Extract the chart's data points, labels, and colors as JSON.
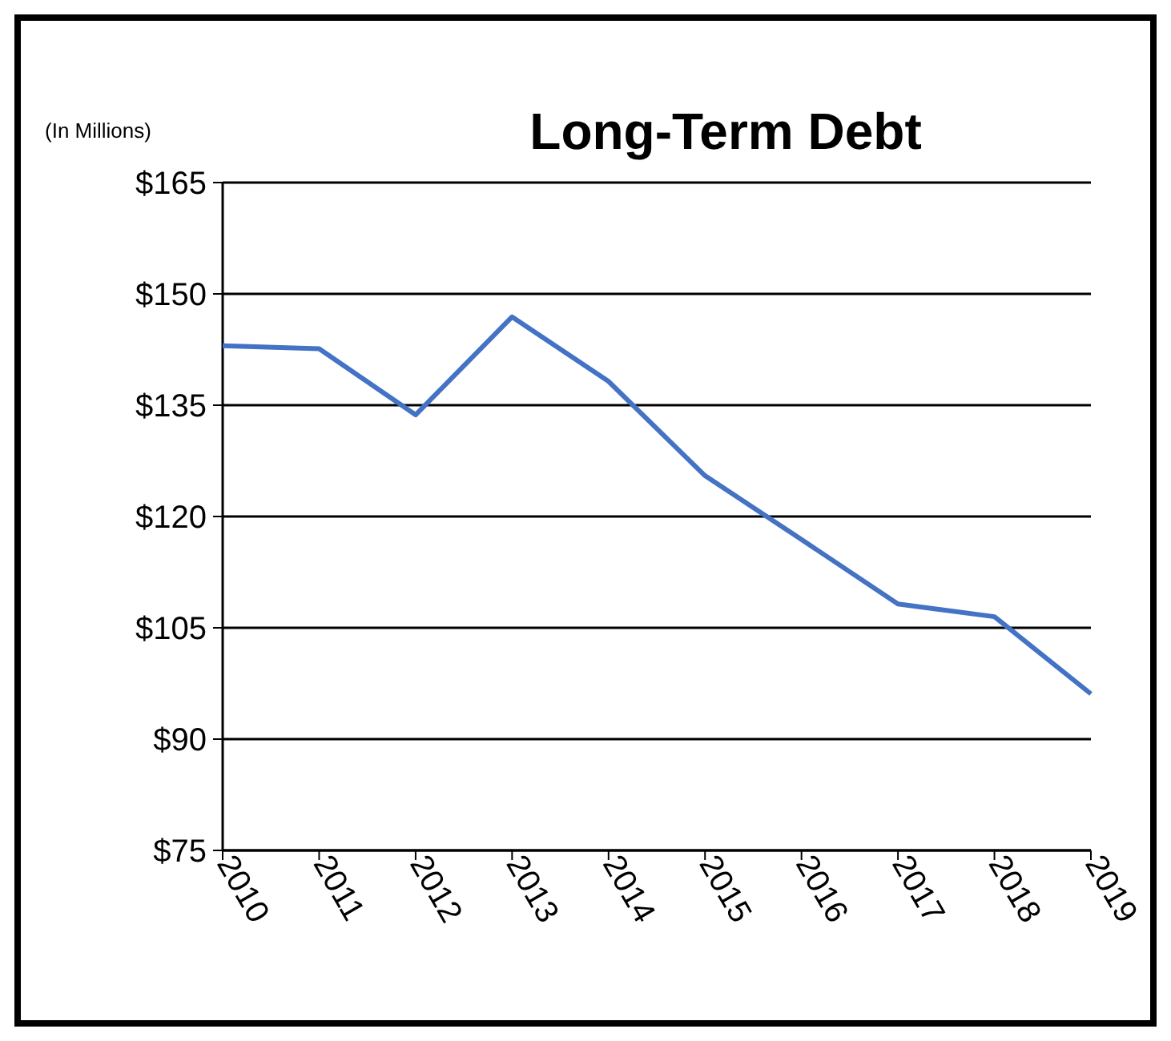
{
  "chart_data": {
    "type": "line",
    "title": "Long-Term Debt",
    "ylabel": "(In Millions)",
    "categories": [
      "2010",
      "2011",
      "2012",
      "2013",
      "2014",
      "2015",
      "2016",
      "2017",
      "2018",
      "2019"
    ],
    "series": [
      {
        "color": "#4472c4",
        "values": [
          143.0,
          142.6,
          133.7,
          146.9,
          138.2,
          125.5,
          116.9,
          108.2,
          106.5,
          96.1
        ]
      }
    ],
    "ylim": [
      75,
      165
    ],
    "yticks": [
      {
        "value": 75,
        "label": "$75"
      },
      {
        "value": 90,
        "label": "$90"
      },
      {
        "value": 105,
        "label": "$105"
      },
      {
        "value": 120,
        "label": "$120"
      },
      {
        "value": 135,
        "label": "$135"
      },
      {
        "value": 150,
        "label": "$150"
      },
      {
        "value": 165,
        "label": "$165"
      }
    ],
    "grid": "y",
    "marker": "none",
    "line_style": "solid"
  }
}
